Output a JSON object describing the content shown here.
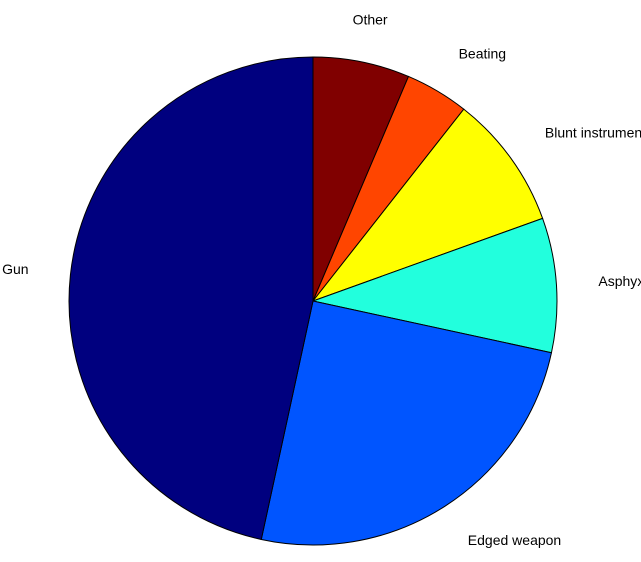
{
  "chart_data": {
    "type": "pie",
    "start_angle_deg": 0,
    "direction": "clockwise",
    "slices": [
      {
        "label": "Other",
        "value": 6.4,
        "color": "#800000"
      },
      {
        "label": "Beating",
        "value": 4.2,
        "color": "#ff4500"
      },
      {
        "label": "Blunt instrument",
        "value": 8.9,
        "color": "#ffff00"
      },
      {
        "label": "Asphyxia",
        "value": 8.9,
        "color": "#22ffdd"
      },
      {
        "label": "Edged weapon",
        "value": 25.0,
        "color": "#0055ff"
      },
      {
        "label": "Gun",
        "value": 46.6,
        "color": "#00007f"
      }
    ]
  }
}
